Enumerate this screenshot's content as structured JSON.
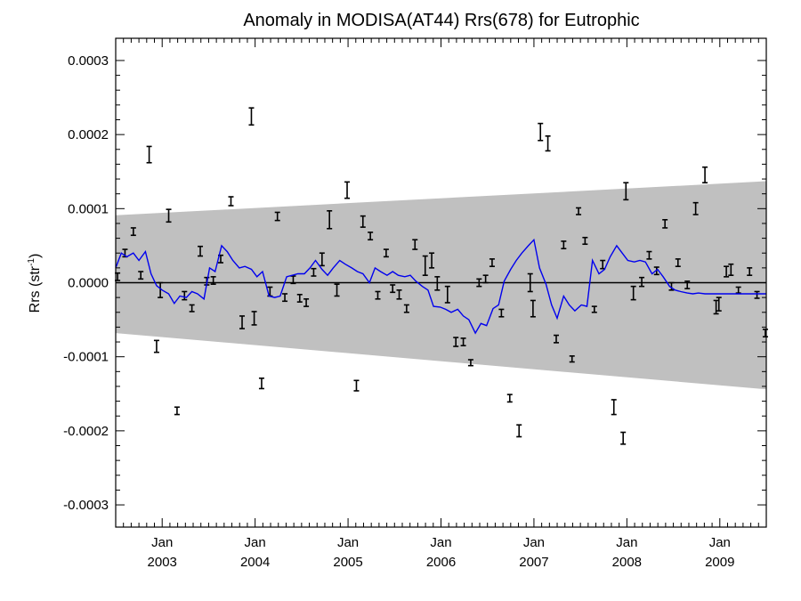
{
  "chart_data": {
    "type": "line",
    "title": "Anomaly in MODISA(AT44) Rrs(678) for Eutrophic",
    "ylabel_main": "Rrs (str",
    "ylabel_sup": "-1",
    "ylabel_end": ")",
    "xlim": [
      2002.5,
      2009.5
    ],
    "ylim": [
      -0.00033,
      0.00033
    ],
    "y_ticks": [
      -0.0003,
      -0.0002,
      -0.0001,
      0.0,
      0.0001,
      0.0002,
      0.0003
    ],
    "y_tick_labels": [
      "-0.0003",
      "-0.0002",
      "-0.0001",
      "0.0000",
      "0.0001",
      "0.0002",
      "0.0003"
    ],
    "x_ticks": [
      {
        "x": 2003.0,
        "month": "Jan",
        "year": "2003"
      },
      {
        "x": 2004.0,
        "month": "Jan",
        "year": "2004"
      },
      {
        "x": 2005.0,
        "month": "Jan",
        "year": "2005"
      },
      {
        "x": 2006.0,
        "month": "Jan",
        "year": "2006"
      },
      {
        "x": 2007.0,
        "month": "Jan",
        "year": "2007"
      },
      {
        "x": 2008.0,
        "month": "Jan",
        "year": "2008"
      },
      {
        "x": 2009.0,
        "month": "Jan",
        "year": "2009"
      }
    ],
    "band": {
      "upper": [
        [
          2002.5,
          9.1e-05
        ],
        [
          2009.5,
          0.000137
        ]
      ],
      "lower": [
        [
          2002.5,
          -6.8e-05
        ],
        [
          2009.5,
          -0.000144
        ]
      ],
      "color": "#c0c0c0"
    },
    "zero_line": 0.0,
    "line_color": "#0000ee",
    "error_bars": [
      {
        "x": 2002.52,
        "lo": 3e-06,
        "hi": 1.3e-05
      },
      {
        "x": 2002.6,
        "lo": 3.5e-05,
        "hi": 4.5e-05
      },
      {
        "x": 2002.69,
        "lo": 6.4e-05,
        "hi": 7.4e-05
      },
      {
        "x": 2002.77,
        "lo": 5e-06,
        "hi": 1.5e-05
      },
      {
        "x": 2002.86,
        "lo": 0.000162,
        "hi": 0.000184
      },
      {
        "x": 2002.94,
        "lo": -9.4e-05,
        "hi": -7.8e-05
      },
      {
        "x": 2002.98,
        "lo": -2e-05,
        "hi": 0.0
      },
      {
        "x": 2003.07,
        "lo": 8.2e-05,
        "hi": 9.9e-05
      },
      {
        "x": 2003.16,
        "lo": -0.000178,
        "hi": -0.000168
      },
      {
        "x": 2003.24,
        "lo": -2.3e-05,
        "hi": -1.2e-05
      },
      {
        "x": 2003.32,
        "lo": -3.9e-05,
        "hi": -3e-05
      },
      {
        "x": 2003.41,
        "lo": 3.6e-05,
        "hi": 4.9e-05
      },
      {
        "x": 2003.48,
        "lo": -3e-06,
        "hi": 7e-06
      },
      {
        "x": 2003.55,
        "lo": -2e-06,
        "hi": 8e-06
      },
      {
        "x": 2003.63,
        "lo": 2.7e-05,
        "hi": 3.7e-05
      },
      {
        "x": 2003.74,
        "lo": 0.000104,
        "hi": 0.000116
      },
      {
        "x": 2003.86,
        "lo": -6.2e-05,
        "hi": -4.5e-05
      },
      {
        "x": 2003.96,
        "lo": 0.000213,
        "hi": 0.000236
      },
      {
        "x": 2003.99,
        "lo": -5.7e-05,
        "hi": -3.9e-05
      },
      {
        "x": 2004.07,
        "lo": -0.000143,
        "hi": -0.000129
      },
      {
        "x": 2004.16,
        "lo": -1.8e-05,
        "hi": -6e-06
      },
      {
        "x": 2004.24,
        "lo": 8.4e-05,
        "hi": 9.5e-05
      },
      {
        "x": 2004.32,
        "lo": -2.5e-05,
        "hi": -1.5e-05
      },
      {
        "x": 2004.41,
        "lo": -1e-06,
        "hi": 9e-06
      },
      {
        "x": 2004.48,
        "lo": -2.6e-05,
        "hi": -1.6e-05
      },
      {
        "x": 2004.55,
        "lo": -3.2e-05,
        "hi": -2.2e-05
      },
      {
        "x": 2004.63,
        "lo": 9e-06,
        "hi": 1.9e-05
      },
      {
        "x": 2004.72,
        "lo": 2.3e-05,
        "hi": 4e-05
      },
      {
        "x": 2004.8,
        "lo": 7.3e-05,
        "hi": 9.7e-05
      },
      {
        "x": 2004.88,
        "lo": -1.8e-05,
        "hi": -2e-06
      },
      {
        "x": 2004.99,
        "lo": 0.000114,
        "hi": 0.000136
      },
      {
        "x": 2005.09,
        "lo": -0.000146,
        "hi": -0.000132
      },
      {
        "x": 2005.16,
        "lo": 7.5e-05,
        "hi": 9e-05
      },
      {
        "x": 2005.24,
        "lo": 5.8e-05,
        "hi": 6.8e-05
      },
      {
        "x": 2005.32,
        "lo": -2.2e-05,
        "hi": -1.2e-05
      },
      {
        "x": 2005.41,
        "lo": 3.5e-05,
        "hi": 4.5e-05
      },
      {
        "x": 2005.48,
        "lo": -1.3e-05,
        "hi": -3e-06
      },
      {
        "x": 2005.55,
        "lo": -2.2e-05,
        "hi": -1e-05
      },
      {
        "x": 2005.63,
        "lo": -4e-05,
        "hi": -3e-05
      },
      {
        "x": 2005.72,
        "lo": 4.5e-05,
        "hi": 5.8e-05
      },
      {
        "x": 2005.83,
        "lo": 1e-05,
        "hi": 3.6e-05
      },
      {
        "x": 2005.9,
        "lo": 2e-05,
        "hi": 4e-05
      },
      {
        "x": 2005.96,
        "lo": -1e-05,
        "hi": 8e-06
      },
      {
        "x": 2006.07,
        "lo": -2.7e-05,
        "hi": -5e-06
      },
      {
        "x": 2006.16,
        "lo": -8.6e-05,
        "hi": -7.4e-05
      },
      {
        "x": 2006.24,
        "lo": -8.5e-05,
        "hi": -7.5e-05
      },
      {
        "x": 2006.32,
        "lo": -0.000112,
        "hi": -0.000104
      },
      {
        "x": 2006.41,
        "lo": -5e-06,
        "hi": 5e-06
      },
      {
        "x": 2006.48,
        "lo": 0.0,
        "hi": 1e-05
      },
      {
        "x": 2006.55,
        "lo": 2.2e-05,
        "hi": 3.2e-05
      },
      {
        "x": 2006.65,
        "lo": -4.6e-05,
        "hi": -3.6e-05
      },
      {
        "x": 2006.74,
        "lo": -0.000161,
        "hi": -0.000151
      },
      {
        "x": 2006.84,
        "lo": -0.000208,
        "hi": -0.000192
      },
      {
        "x": 2006.96,
        "lo": -1.2e-05,
        "hi": 1.2e-05
      },
      {
        "x": 2006.99,
        "lo": -4.6e-05,
        "hi": -2.4e-05
      },
      {
        "x": 2007.07,
        "lo": 0.000192,
        "hi": 0.000215
      },
      {
        "x": 2007.15,
        "lo": 0.000178,
        "hi": 0.000198
      },
      {
        "x": 2007.24,
        "lo": -8.1e-05,
        "hi": -7.1e-05
      },
      {
        "x": 2007.32,
        "lo": 4.6e-05,
        "hi": 5.6e-05
      },
      {
        "x": 2007.41,
        "lo": -0.000107,
        "hi": -9.9e-05
      },
      {
        "x": 2007.48,
        "lo": 9.2e-05,
        "hi": 0.000101
      },
      {
        "x": 2007.55,
        "lo": 5.2e-05,
        "hi": 6.1e-05
      },
      {
        "x": 2007.65,
        "lo": -4e-05,
        "hi": -3.2e-05
      },
      {
        "x": 2007.74,
        "lo": 1.9e-05,
        "hi": 3e-05
      },
      {
        "x": 2007.86,
        "lo": -0.000178,
        "hi": -0.000158
      },
      {
        "x": 2007.96,
        "lo": -0.000218,
        "hi": -0.000202
      },
      {
        "x": 2007.99,
        "lo": 0.000112,
        "hi": 0.000135
      },
      {
        "x": 2008.07,
        "lo": -2.3e-05,
        "hi": -5e-06
      },
      {
        "x": 2008.16,
        "lo": -5e-06,
        "hi": 7e-06
      },
      {
        "x": 2008.24,
        "lo": 3.2e-05,
        "hi": 4.2e-05
      },
      {
        "x": 2008.32,
        "lo": 1.1e-05,
        "hi": 2.1e-05
      },
      {
        "x": 2008.41,
        "lo": 7.4e-05,
        "hi": 8.5e-05
      },
      {
        "x": 2008.48,
        "lo": -1e-05,
        "hi": 0.0
      },
      {
        "x": 2008.55,
        "lo": 2.2e-05,
        "hi": 3.2e-05
      },
      {
        "x": 2008.65,
        "lo": -8e-06,
        "hi": 2e-06
      },
      {
        "x": 2008.74,
        "lo": 9.2e-05,
        "hi": 0.000108
      },
      {
        "x": 2008.84,
        "lo": 0.000135,
        "hi": 0.000156
      },
      {
        "x": 2008.96,
        "lo": -4.2e-05,
        "hi": -2.4e-05
      },
      {
        "x": 2008.99,
        "lo": -3.8e-05,
        "hi": -2e-05
      },
      {
        "x": 2009.07,
        "lo": 8e-06,
        "hi": 2.2e-05
      },
      {
        "x": 2009.12,
        "lo": 1e-05,
        "hi": 2.5e-05
      },
      {
        "x": 2009.2,
        "lo": -1.4e-05,
        "hi": -6e-06
      },
      {
        "x": 2009.32,
        "lo": 1e-05,
        "hi": 2e-05
      },
      {
        "x": 2009.4,
        "lo": -2.1e-05,
        "hi": -1.2e-05
      },
      {
        "x": 2009.49,
        "lo": -7.3e-05,
        "hi": -6.3e-05
      }
    ],
    "line": [
      [
        2002.5,
        2e-05
      ],
      [
        2002.56,
        4e-05
      ],
      [
        2002.62,
        3.5e-05
      ],
      [
        2002.69,
        4e-05
      ],
      [
        2002.75,
        3e-05
      ],
      [
        2002.82,
        4.2e-05
      ],
      [
        2002.88,
        1.2e-05
      ],
      [
        2002.94,
        -4e-06
      ],
      [
        2003.0,
        -1e-05
      ],
      [
        2003.07,
        -1.5e-05
      ],
      [
        2003.13,
        -2.8e-05
      ],
      [
        2003.19,
        -1.8e-05
      ],
      [
        2003.26,
        -2e-05
      ],
      [
        2003.32,
        -1.2e-05
      ],
      [
        2003.38,
        -1.5e-05
      ],
      [
        2003.45,
        -2.2e-05
      ],
      [
        2003.51,
        2e-05
      ],
      [
        2003.57,
        1.5e-05
      ],
      [
        2003.64,
        5e-05
      ],
      [
        2003.7,
        4.2e-05
      ],
      [
        2003.76,
        3e-05
      ],
      [
        2003.83,
        2e-05
      ],
      [
        2003.89,
        2.2e-05
      ],
      [
        2003.96,
        1.8e-05
      ],
      [
        2004.02,
        8e-06
      ],
      [
        2004.08,
        1.5e-05
      ],
      [
        2004.15,
        -1.8e-05
      ],
      [
        2004.21,
        -2e-05
      ],
      [
        2004.27,
        -1.8e-05
      ],
      [
        2004.34,
        8e-06
      ],
      [
        2004.4,
        1e-05
      ],
      [
        2004.46,
        1.2e-05
      ],
      [
        2004.53,
        1.2e-05
      ],
      [
        2004.59,
        2e-05
      ],
      [
        2004.65,
        3e-05
      ],
      [
        2004.72,
        1.8e-05
      ],
      [
        2004.78,
        1e-05
      ],
      [
        2004.84,
        2e-05
      ],
      [
        2004.91,
        3e-05
      ],
      [
        2004.97,
        2.5e-05
      ],
      [
        2005.04,
        2e-05
      ],
      [
        2005.1,
        1.5e-05
      ],
      [
        2005.16,
        1.2e-05
      ],
      [
        2005.23,
        0.0
      ],
      [
        2005.29,
        2e-05
      ],
      [
        2005.35,
        1.5e-05
      ],
      [
        2005.42,
        1e-05
      ],
      [
        2005.48,
        1.5e-05
      ],
      [
        2005.54,
        1e-05
      ],
      [
        2005.61,
        8e-06
      ],
      [
        2005.67,
        1e-05
      ],
      [
        2005.73,
        2e-06
      ],
      [
        2005.8,
        -5e-06
      ],
      [
        2005.86,
        -1e-05
      ],
      [
        2005.92,
        -3.2e-05
      ],
      [
        2005.99,
        -3.3e-05
      ],
      [
        2006.05,
        -3.6e-05
      ],
      [
        2006.11,
        -4e-05
      ],
      [
        2006.18,
        -3.6e-05
      ],
      [
        2006.24,
        -4.5e-05
      ],
      [
        2006.3,
        -5e-05
      ],
      [
        2006.37,
        -6.8e-05
      ],
      [
        2006.43,
        -5.5e-05
      ],
      [
        2006.49,
        -5.8e-05
      ],
      [
        2006.56,
        -3.5e-05
      ],
      [
        2006.62,
        -3e-05
      ],
      [
        2006.68,
        2e-06
      ],
      [
        2006.75,
        1.8e-05
      ],
      [
        2006.81,
        3e-05
      ],
      [
        2006.87,
        4e-05
      ],
      [
        2006.94,
        5e-05
      ],
      [
        2007.0,
        5.8e-05
      ],
      [
        2007.06,
        2e-05
      ],
      [
        2007.13,
        -2e-06
      ],
      [
        2007.19,
        -3e-05
      ],
      [
        2007.25,
        -4.8e-05
      ],
      [
        2007.32,
        -1.8e-05
      ],
      [
        2007.38,
        -3e-05
      ],
      [
        2007.44,
        -3.8e-05
      ],
      [
        2007.51,
        -3e-05
      ],
      [
        2007.57,
        -3.2e-05
      ],
      [
        2007.63,
        3e-05
      ],
      [
        2007.7,
        1.2e-05
      ],
      [
        2007.76,
        1.8e-05
      ],
      [
        2007.82,
        3.5e-05
      ],
      [
        2007.89,
        5e-05
      ],
      [
        2007.95,
        4e-05
      ],
      [
        2008.01,
        3e-05
      ],
      [
        2008.08,
        2.8e-05
      ],
      [
        2008.14,
        3e-05
      ],
      [
        2008.2,
        2.8e-05
      ],
      [
        2008.27,
        1.2e-05
      ],
      [
        2008.33,
        1.8e-05
      ],
      [
        2008.39,
        8e-06
      ],
      [
        2008.46,
        -5e-06
      ],
      [
        2008.52,
        -1e-05
      ],
      [
        2008.58,
        -1.2e-05
      ],
      [
        2008.65,
        -1.4e-05
      ],
      [
        2008.71,
        -1.5e-05
      ],
      [
        2008.77,
        -1.4e-05
      ],
      [
        2008.84,
        -1.5e-05
      ],
      [
        2008.9,
        -1.5e-05
      ],
      [
        2008.96,
        -1.5e-05
      ],
      [
        2009.03,
        -1.5e-05
      ],
      [
        2009.09,
        -1.5e-05
      ],
      [
        2009.15,
        -1.5e-05
      ],
      [
        2009.22,
        -1.5e-05
      ],
      [
        2009.28,
        -1.5e-05
      ],
      [
        2009.34,
        -1.5e-05
      ],
      [
        2009.41,
        -1.5e-05
      ],
      [
        2009.47,
        -1.5e-05
      ],
      [
        2009.5,
        -1.5e-05
      ]
    ]
  }
}
